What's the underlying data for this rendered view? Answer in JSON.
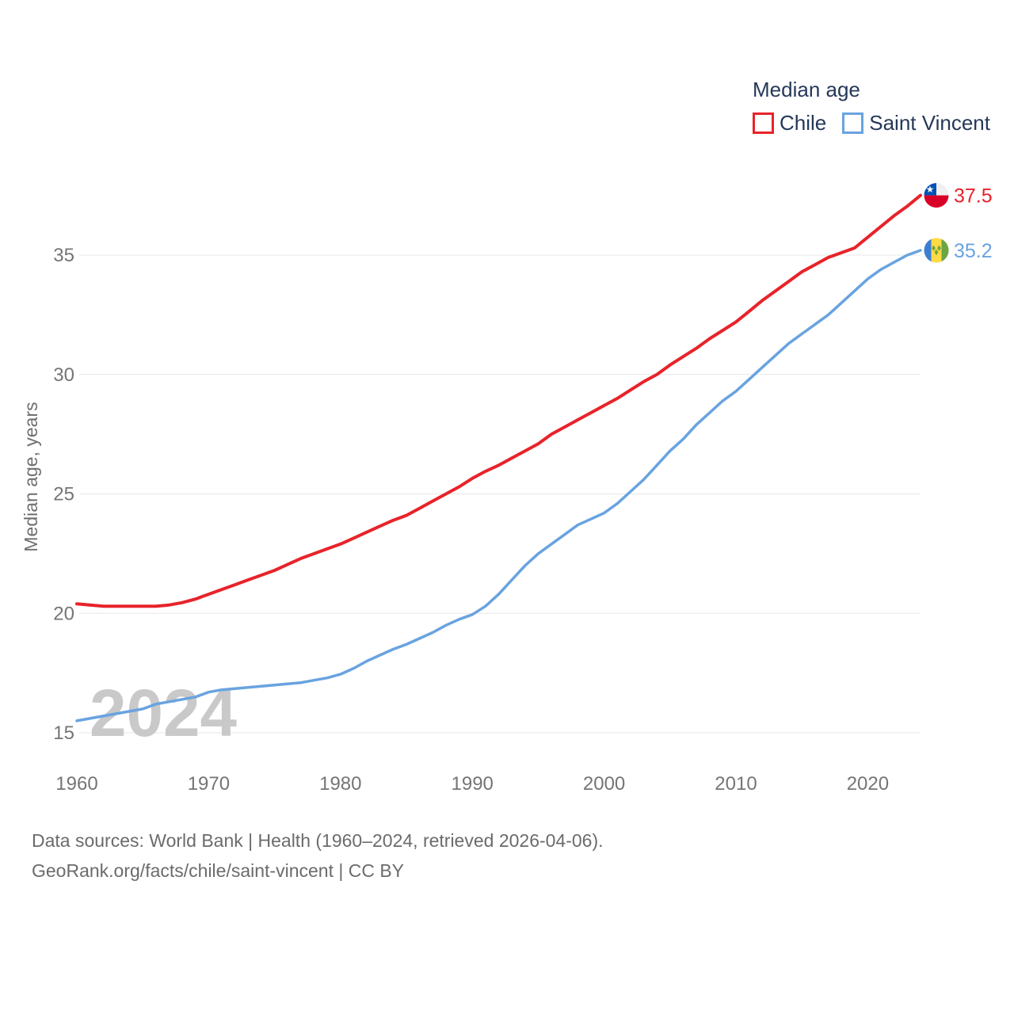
{
  "legend": {
    "title": "Median age",
    "items": [
      {
        "label": "Chile"
      },
      {
        "label": "Saint Vincent"
      }
    ]
  },
  "chart_data": {
    "type": "line",
    "title": "Median age",
    "xlabel": "",
    "ylabel": "Median age, years",
    "watermark": "2024",
    "grid": "horizontal",
    "legend_position": "top-right",
    "ylim": [
      15,
      38
    ],
    "xlim": [
      1960,
      2024
    ],
    "yticks": [
      15,
      20,
      25,
      30,
      35
    ],
    "xticks": [
      1960,
      1970,
      1980,
      1990,
      2000,
      2010,
      2020
    ],
    "years": [
      1960,
      1961,
      1962,
      1963,
      1964,
      1965,
      1966,
      1967,
      1968,
      1969,
      1970,
      1971,
      1972,
      1973,
      1974,
      1975,
      1976,
      1977,
      1978,
      1979,
      1980,
      1981,
      1982,
      1983,
      1984,
      1985,
      1986,
      1987,
      1988,
      1989,
      1990,
      1991,
      1992,
      1993,
      1994,
      1995,
      1996,
      1997,
      1998,
      1999,
      2000,
      2001,
      2002,
      2003,
      2004,
      2005,
      2006,
      2007,
      2008,
      2009,
      2010,
      2011,
      2012,
      2013,
      2014,
      2015,
      2016,
      2017,
      2018,
      2019,
      2020,
      2021,
      2022,
      2023,
      2024
    ],
    "series": [
      {
        "name": "Chile",
        "color": "#e8232a",
        "end_label": "37.5",
        "flag": "chile",
        "values": [
          20.4,
          20.35,
          20.3,
          20.3,
          20.3,
          20.3,
          20.3,
          20.35,
          20.45,
          20.6,
          20.8,
          21.0,
          21.2,
          21.4,
          21.6,
          21.8,
          22.05,
          22.3,
          22.5,
          22.7,
          22.9,
          23.15,
          23.4,
          23.65,
          23.9,
          24.1,
          24.4,
          24.7,
          25.0,
          25.3,
          25.65,
          25.95,
          26.2,
          26.5,
          26.8,
          27.1,
          27.5,
          27.8,
          28.1,
          28.4,
          28.7,
          29.0,
          29.35,
          29.7,
          30.0,
          30.4,
          30.75,
          31.1,
          31.5,
          31.85,
          32.2,
          32.65,
          33.1,
          33.5,
          33.9,
          34.3,
          34.6,
          34.9,
          35.1,
          35.3,
          35.75,
          36.2,
          36.65,
          37.05,
          37.5
        ]
      },
      {
        "name": "Saint Vincent",
        "color": "#69a3e0",
        "end_label": "35.2",
        "flag": "saint-vincent",
        "values": [
          15.5,
          15.6,
          15.7,
          15.8,
          15.9,
          16.0,
          16.2,
          16.3,
          16.4,
          16.5,
          16.7,
          16.8,
          16.85,
          16.9,
          16.95,
          17.0,
          17.05,
          17.1,
          17.2,
          17.3,
          17.45,
          17.7,
          18.0,
          18.25,
          18.5,
          18.7,
          18.95,
          19.2,
          19.5,
          19.75,
          19.95,
          20.3,
          20.8,
          21.4,
          22.0,
          22.5,
          22.9,
          23.3,
          23.7,
          23.95,
          24.2,
          24.6,
          25.1,
          25.6,
          26.2,
          26.8,
          27.3,
          27.9,
          28.4,
          28.9,
          29.3,
          29.8,
          30.3,
          30.8,
          31.3,
          31.7,
          32.1,
          32.5,
          33.0,
          33.5,
          34.0,
          34.4,
          34.7,
          35.0,
          35.2
        ]
      }
    ]
  },
  "footer": {
    "line1": "Data sources: World Bank | Health (1960–2024, retrieved 2026-04-06).",
    "line2": "GeoRank.org/facts/chile/saint-vincent | CC BY"
  }
}
